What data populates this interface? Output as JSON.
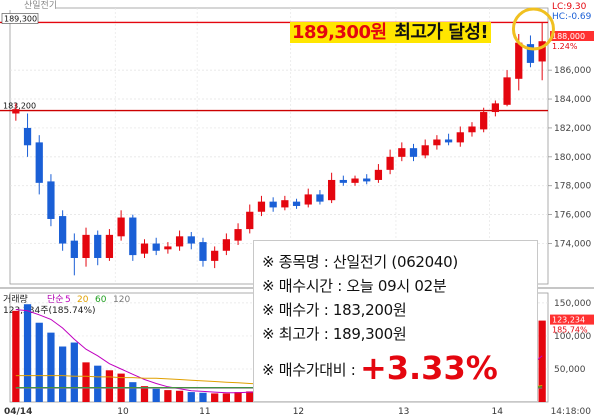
{
  "chart_data": [
    {
      "type": "candlestick",
      "panel": "price",
      "y_ticks": [
        "186,000",
        "184,000",
        "182,000",
        "180,000",
        "178,000",
        "176,000",
        "174,000"
      ],
      "x_ticks": [
        "04/14",
        "10",
        "11",
        "12",
        "13",
        "14"
      ],
      "time_label": "14:18:00",
      "tab_label": "산일전기",
      "labels": {
        "high_line": "189,300",
        "buy_line": "183,200",
        "current_price": "188,000",
        "current_pct": "1.24%",
        "lc": "LC:9.30",
        "hc": "HC:-0.69"
      },
      "candles": [
        {
          "o": 183000,
          "c": 183300,
          "h": 183700,
          "l": 182500
        },
        {
          "o": 182000,
          "c": 180800,
          "h": 183000,
          "l": 180000
        },
        {
          "o": 181000,
          "c": 178200,
          "h": 181500,
          "l": 177400
        },
        {
          "o": 178300,
          "c": 175700,
          "h": 178800,
          "l": 175200
        },
        {
          "o": 175900,
          "c": 174000,
          "h": 176300,
          "l": 173500
        },
        {
          "o": 174200,
          "c": 173000,
          "h": 174700,
          "l": 171800
        },
        {
          "o": 173000,
          "c": 174600,
          "h": 175100,
          "l": 172400
        },
        {
          "o": 174600,
          "c": 173000,
          "h": 174900,
          "l": 172500
        },
        {
          "o": 173000,
          "c": 174600,
          "h": 175000,
          "l": 172800
        },
        {
          "o": 174500,
          "c": 175800,
          "h": 176300,
          "l": 174200
        },
        {
          "o": 175800,
          "c": 173200,
          "h": 176000,
          "l": 172800
        },
        {
          "o": 173300,
          "c": 174000,
          "h": 174300,
          "l": 173000
        },
        {
          "o": 174000,
          "c": 173500,
          "h": 174400,
          "l": 173200
        },
        {
          "o": 173600,
          "c": 173800,
          "h": 174100,
          "l": 173300
        },
        {
          "o": 173800,
          "c": 174500,
          "h": 174900,
          "l": 173500
        },
        {
          "o": 174500,
          "c": 174000,
          "h": 174800,
          "l": 173600
        },
        {
          "o": 174100,
          "c": 172800,
          "h": 174400,
          "l": 172400
        },
        {
          "o": 172800,
          "c": 173500,
          "h": 173800,
          "l": 172300
        },
        {
          "o": 173500,
          "c": 174300,
          "h": 174700,
          "l": 173200
        },
        {
          "o": 174200,
          "c": 175000,
          "h": 175400,
          "l": 173900
        },
        {
          "o": 175000,
          "c": 176200,
          "h": 176700,
          "l": 174700
        },
        {
          "o": 176200,
          "c": 176900,
          "h": 177300,
          "l": 175900
        },
        {
          "o": 176900,
          "c": 176500,
          "h": 177200,
          "l": 176200
        },
        {
          "o": 176500,
          "c": 177000,
          "h": 177300,
          "l": 176300
        },
        {
          "o": 176900,
          "c": 176600,
          "h": 177100,
          "l": 176400
        },
        {
          "o": 176700,
          "c": 177400,
          "h": 177800,
          "l": 176500
        },
        {
          "o": 177400,
          "c": 176900,
          "h": 177700,
          "l": 176700
        },
        {
          "o": 177000,
          "c": 178400,
          "h": 178900,
          "l": 176800
        },
        {
          "o": 178400,
          "c": 178200,
          "h": 178700,
          "l": 178000
        },
        {
          "o": 178200,
          "c": 178500,
          "h": 178700,
          "l": 178000
        },
        {
          "o": 178500,
          "c": 178300,
          "h": 178800,
          "l": 178100
        },
        {
          "o": 178400,
          "c": 179100,
          "h": 179500,
          "l": 178200
        },
        {
          "o": 179100,
          "c": 180000,
          "h": 180500,
          "l": 178800
        },
        {
          "o": 180000,
          "c": 180600,
          "h": 181000,
          "l": 179700
        },
        {
          "o": 180600,
          "c": 180000,
          "h": 180900,
          "l": 179700
        },
        {
          "o": 180100,
          "c": 180800,
          "h": 181200,
          "l": 179900
        },
        {
          "o": 180800,
          "c": 181200,
          "h": 181500,
          "l": 180500
        },
        {
          "o": 181200,
          "c": 181000,
          "h": 181600,
          "l": 180800
        },
        {
          "o": 181000,
          "c": 181700,
          "h": 182100,
          "l": 180700
        },
        {
          "o": 181700,
          "c": 182100,
          "h": 182400,
          "l": 181400
        },
        {
          "o": 181900,
          "c": 183100,
          "h": 183400,
          "l": 181700
        },
        {
          "o": 183100,
          "c": 183700,
          "h": 183900,
          "l": 182800
        },
        {
          "o": 183600,
          "c": 185500,
          "h": 186000,
          "l": 183500
        },
        {
          "o": 185400,
          "c": 187900,
          "h": 188500,
          "l": 184600
        },
        {
          "o": 187800,
          "c": 186500,
          "h": 188400,
          "l": 186200
        },
        {
          "o": 186600,
          "c": 188000,
          "h": 189300,
          "l": 185300
        }
      ]
    },
    {
      "type": "bar",
      "panel": "volume",
      "title": "거래량",
      "legend": [
        {
          "label": "단순",
          "color": "#b000b0"
        },
        {
          "label": "5",
          "color": "#c000c0"
        },
        {
          "label": "20",
          "color": "#e0a000"
        },
        {
          "label": "60",
          "color": "#20a020"
        },
        {
          "label": "120",
          "color": "#7a7a7a"
        }
      ],
      "summary": "123,234주(185.74%)",
      "y_ticks": [
        "150,000",
        "100,000",
        "50,000"
      ],
      "current_label": "123,234",
      "current_pct": "185.74%",
      "values": [
        138000,
        148000,
        120000,
        105000,
        84000,
        90000,
        60000,
        55000,
        48000,
        43000,
        30000,
        24000,
        20000,
        18000,
        17000,
        15000,
        14000,
        13000,
        13000,
        15000,
        16000,
        17000,
        15000,
        14000,
        13000,
        14000,
        13000,
        15000,
        14000,
        13000,
        12000,
        13000,
        14000,
        15000,
        14000,
        13000,
        15000,
        17000,
        18000,
        20000,
        25000,
        22000,
        35000,
        95000,
        70000,
        123234
      ],
      "ma5": [
        140000,
        138000,
        132000,
        125000,
        112000,
        95000,
        80000,
        70000,
        58000,
        50000,
        42000,
        34000,
        28000,
        23000,
        20000,
        17000,
        16000,
        15000,
        14000,
        14000,
        15000,
        15000,
        15000,
        15000,
        15000,
        14000,
        14000,
        14000,
        14000,
        14000,
        13000,
        13000,
        13000,
        14000,
        14000,
        14000,
        14000,
        15000,
        16000,
        17000,
        20000,
        22000,
        25000,
        43000,
        55000,
        70000
      ],
      "ma20": [
        40000,
        40000,
        40000,
        40000,
        40000,
        39000,
        39000,
        38000,
        38000,
        37000,
        37000,
        36000,
        36000,
        35000,
        34000,
        33000,
        32000,
        31000,
        30000,
        29000,
        28000,
        27000,
        26000,
        25000,
        24000,
        23000,
        22000,
        21000,
        20000,
        19000,
        18000,
        18000,
        17000,
        17000,
        16000,
        16000,
        16000,
        15000,
        15000,
        15000,
        16000,
        16000,
        17000,
        20000,
        22000,
        25000
      ],
      "ma60": [
        22000,
        22000,
        22000,
        22000,
        22000,
        22000,
        22000,
        22000,
        22000,
        22000,
        22000,
        22000,
        22000,
        22000,
        22000,
        22000,
        22000,
        22000,
        22000,
        22000,
        22000,
        22000,
        22000,
        21000,
        21000,
        21000,
        21000,
        21000,
        21000,
        21000,
        21000,
        20000,
        20000,
        20000,
        20000,
        20000,
        20000,
        20000,
        20000,
        20000,
        21000,
        21000,
        21000,
        22000,
        22000,
        23000
      ],
      "ma120": [
        21000,
        21000,
        21000,
        21000,
        21000,
        21000,
        21000,
        21000,
        21000,
        21000,
        21000,
        21000,
        21000,
        21000,
        21000,
        21000,
        21000,
        21000,
        21000,
        21000,
        21000,
        21000,
        21000,
        21000,
        21000,
        21000,
        21000,
        21000,
        21000,
        21000,
        21000,
        21000,
        21000,
        21000,
        21000,
        21000,
        21000,
        21000,
        21000,
        21000,
        21000,
        21000,
        21000,
        21000,
        21000,
        21000
      ]
    }
  ],
  "annotation": {
    "price": "189,300원",
    "text": " 최고가 달성!"
  },
  "info": {
    "name": "※ 종목명 : 산일전기 (062040)",
    "time": "※ 매수시간 : 오늘 09시 02분",
    "buy": "※ 매수가 : 183,200원",
    "high": "※ 최고가 : 189,300원",
    "gain_label": "※ 매수가대비 : ",
    "gain_value": "+3.33%"
  },
  "colors": {
    "up": "#e4060f",
    "down": "#1a5fd6",
    "highlight": "#ffe600",
    "circle": "#f0c020"
  }
}
